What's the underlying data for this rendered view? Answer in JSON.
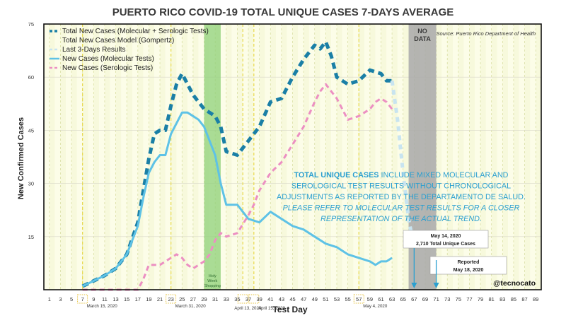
{
  "chart_data": {
    "type": "line",
    "title": "PUERTO RICO COVID-19 TOTAL UNIQUE CASES 7-DAYS AVERAGE",
    "source": "Source: Puerto Rico Department of Health",
    "xlabel": "Test Day",
    "ylabel": "New Confirmed Cases",
    "xlim": [
      0,
      90
    ],
    "ylim": [
      0,
      75
    ],
    "x_ticks": [
      1,
      3,
      5,
      7,
      9,
      11,
      13,
      15,
      17,
      19,
      21,
      23,
      25,
      27,
      29,
      31,
      33,
      35,
      37,
      39,
      41,
      43,
      45,
      47,
      49,
      51,
      53,
      55,
      57,
      59,
      61,
      63,
      65,
      67,
      69,
      71,
      73,
      75,
      77,
      79,
      81,
      83,
      85,
      87,
      89
    ],
    "x_tick_labels": [
      "1",
      "3",
      "5",
      "7",
      "9",
      "11",
      "13",
      "15",
      "17",
      "19",
      "21",
      "23",
      "25",
      "27",
      "29",
      "31",
      "33",
      "35",
      "37",
      "39",
      "41",
      "43",
      "45",
      "47",
      "49",
      "51",
      "53",
      "55",
      "57",
      "59",
      "61",
      "63",
      "65",
      "67",
      "69",
      "71",
      "73",
      "75",
      "77",
      "79",
      "81",
      "83",
      "85",
      "87",
      "89"
    ],
    "y_ticks": [
      0,
      15,
      30,
      45,
      60,
      75
    ],
    "y_tick_labels": [
      "15",
      "30",
      "45",
      "60",
      "75"
    ],
    "grid": true,
    "legend": {
      "position": "top-left",
      "entries": [
        {
          "label": "Total New Cases (Molecular + Serologic Tests)",
          "color": "#1a7fa6",
          "style": "dashed-thick"
        },
        {
          "label": "Total New Cases Model (Gompertz)",
          "color": "#2a2a2a",
          "style": "none"
        },
        {
          "label": "Last 3-Days Results",
          "color": "#c8e4f0",
          "style": "dashed"
        },
        {
          "label": "New Cases (Molecular Tests)",
          "color": "#5ec2e6",
          "style": "solid"
        },
        {
          "label": "New Cases (Serologic Tests)",
          "color": "#ec8fc2",
          "style": "dashed"
        }
      ]
    },
    "series": [
      {
        "name": "Total New Cases (Molecular + Serologic Tests)",
        "color": "#1a7fa6",
        "x": [
          7,
          9,
          11,
          13,
          15,
          17,
          18,
          19,
          20,
          21,
          22,
          23,
          24,
          25,
          26,
          27,
          28,
          29,
          30,
          31,
          32,
          33,
          35,
          37,
          39,
          41,
          43,
          45,
          47,
          49,
          50,
          51,
          52,
          53,
          55,
          57,
          59,
          61,
          62,
          63
        ],
        "y": [
          1,
          2.5,
          4,
          6,
          10,
          19,
          28,
          37,
          44,
          45,
          45,
          52,
          58,
          61,
          58,
          55,
          53,
          51,
          50,
          49,
          46,
          39,
          38,
          42,
          46,
          53,
          54,
          60,
          65,
          69,
          68,
          70,
          66,
          60,
          58,
          59,
          62,
          61,
          59,
          59
        ]
      },
      {
        "name": "Last 3-Days Results",
        "color": "#c8e4f0",
        "x": [
          63,
          64,
          65,
          66,
          67
        ],
        "y": [
          59,
          48,
          33,
          20,
          12
        ]
      },
      {
        "name": "New Cases (Molecular Tests)",
        "color": "#5ec2e6",
        "x": [
          7,
          9,
          11,
          13,
          15,
          17,
          18,
          19,
          20,
          21,
          22,
          23,
          24,
          25,
          26,
          27,
          28,
          29,
          30,
          31,
          32,
          33,
          35,
          37,
          39,
          41,
          43,
          45,
          47,
          49,
          51,
          53,
          55,
          57,
          59,
          60,
          61,
          62,
          63
        ],
        "y": [
          1,
          2.5,
          4,
          6,
          10,
          18,
          26,
          33,
          36,
          38,
          38,
          44,
          47,
          50,
          50,
          49,
          48,
          46,
          42,
          38,
          30,
          24,
          24,
          20,
          19,
          22,
          20,
          18,
          17,
          15,
          13,
          12,
          10,
          9,
          8,
          7,
          8,
          8,
          9
        ]
      },
      {
        "name": "New Cases (Serologic Tests)",
        "color": "#ec8fc2",
        "x": [
          7,
          9,
          11,
          13,
          15,
          17,
          18,
          19,
          20,
          21,
          22,
          23,
          24,
          25,
          26,
          27,
          28,
          29,
          30,
          31,
          32,
          33,
          35,
          37,
          38,
          39,
          41,
          43,
          45,
          47,
          49,
          50,
          51,
          52,
          53,
          55,
          57,
          59,
          60,
          61,
          62,
          63
        ],
        "y": [
          0,
          0,
          0,
          0,
          0,
          0,
          3,
          7,
          7,
          7,
          8,
          9,
          10,
          9,
          7,
          6,
          7,
          8,
          10,
          14,
          16,
          15,
          16,
          21,
          24,
          28,
          33,
          36,
          41,
          46,
          53,
          56,
          58,
          56,
          54,
          48,
          49,
          51,
          53,
          54,
          53,
          51
        ]
      }
    ],
    "annotations": [
      {
        "text": "Holy Week Shopping",
        "x_range": [
          29,
          32
        ]
      },
      {
        "text": "NO DATA",
        "x_range": [
          66,
          71
        ]
      },
      {
        "text": "May 14, 2020",
        "x": 67
      },
      {
        "text": "2,710 Total Unique Cases",
        "x": 67
      },
      {
        "text": "Reported",
        "x": 71
      },
      {
        "text": "May 18, 2020",
        "x": 71
      },
      {
        "text": "@tecnocato"
      }
    ],
    "date_markers": [
      {
        "x": 7,
        "label": "March 15, 2020"
      },
      {
        "x": 23,
        "label": "March 31, 2020"
      },
      {
        "x": 36,
        "label": "April 13, 2020"
      },
      {
        "x": 38,
        "label": "April 15, 2020"
      },
      {
        "x": 57,
        "label": "May 4, 2020"
      }
    ],
    "note": {
      "lead": "TOTAL UNIQUE CASES",
      "line1_rest": " INCLUDE MIXED MOLECULAR AND",
      "line2": "SEROLOGICAL TEST RESULTS WITHOUT CHRONOLOGICAL",
      "line3": "ADJUSTMENTS AS REPORTED BY THE DEPARTAMENTO DE SALUD.",
      "line4": "PLEASE REFER TO MOLECULAR TEST RESULTS FOR A CLOSER",
      "line5": "REPRESENTATION OF THE ACTUAL TREND."
    }
  }
}
